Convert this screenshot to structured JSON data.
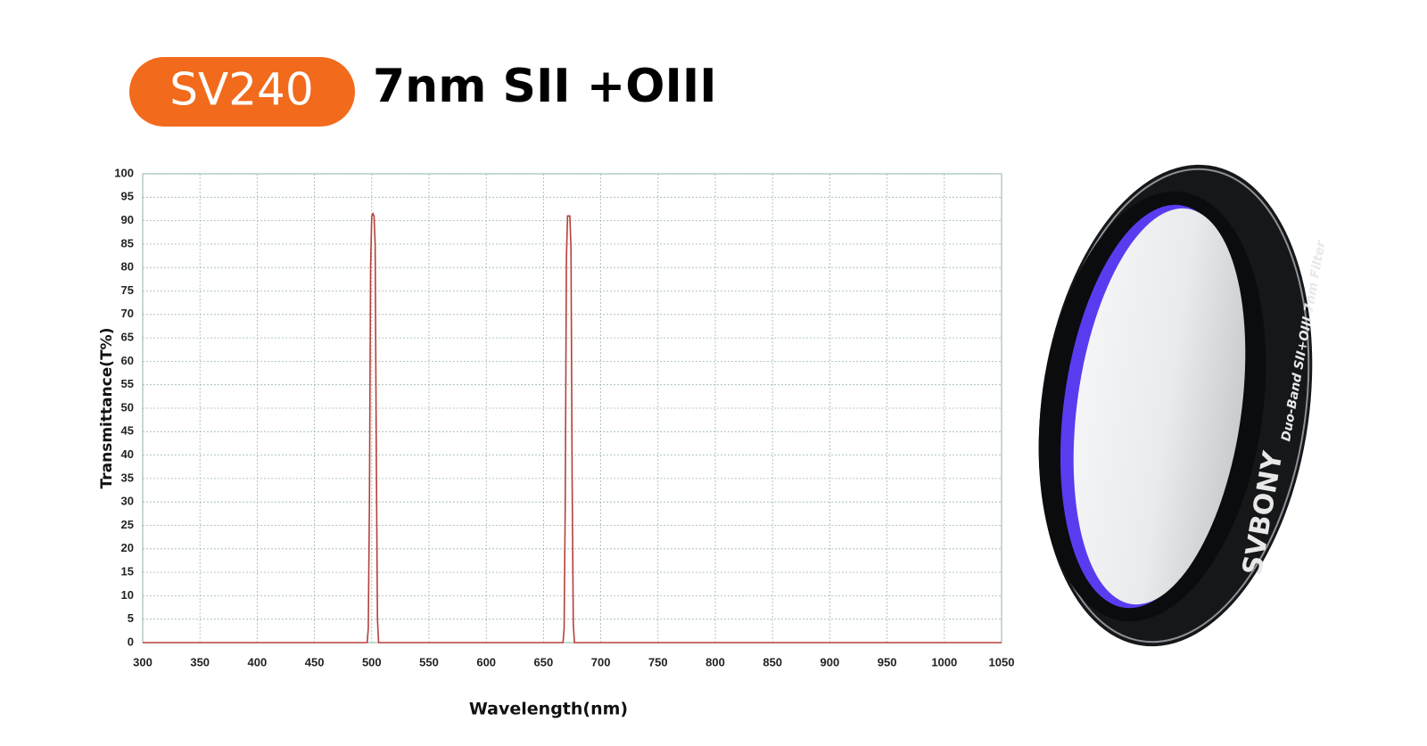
{
  "badge": "SV240",
  "title": "7nm SII +OIII",
  "chart_data": {
    "type": "line",
    "ylabel": "Transmittance(T%)",
    "xlabel": "Wavelength(nm)",
    "x": [
      300,
      496,
      497,
      498,
      499,
      500,
      501,
      502,
      503,
      504,
      505,
      506,
      667,
      668,
      669,
      670,
      671,
      672,
      673,
      674,
      675,
      676,
      677,
      1050
    ],
    "series": [
      {
        "color": "#b5403c",
        "values": [
          0,
          0,
          3,
          30,
          80,
          91,
          91.5,
          91,
          85,
          40,
          5,
          0,
          0,
          3,
          30,
          82,
          91,
          91,
          91,
          84,
          35,
          4,
          0,
          0
        ]
      }
    ],
    "xlim": [
      300,
      1050
    ],
    "ylim": [
      0,
      100
    ],
    "xticks": [
      300,
      350,
      400,
      450,
      500,
      550,
      600,
      650,
      700,
      750,
      800,
      850,
      900,
      950,
      1000,
      1050
    ],
    "yticks": [
      0,
      5,
      10,
      15,
      20,
      25,
      30,
      35,
      40,
      45,
      50,
      55,
      60,
      65,
      70,
      75,
      80,
      85,
      90,
      95,
      100
    ],
    "grid": true
  },
  "filter": {
    "brand": "SVBONY",
    "engraving": "Duo-Band SII+OIII 7nm Filter"
  }
}
